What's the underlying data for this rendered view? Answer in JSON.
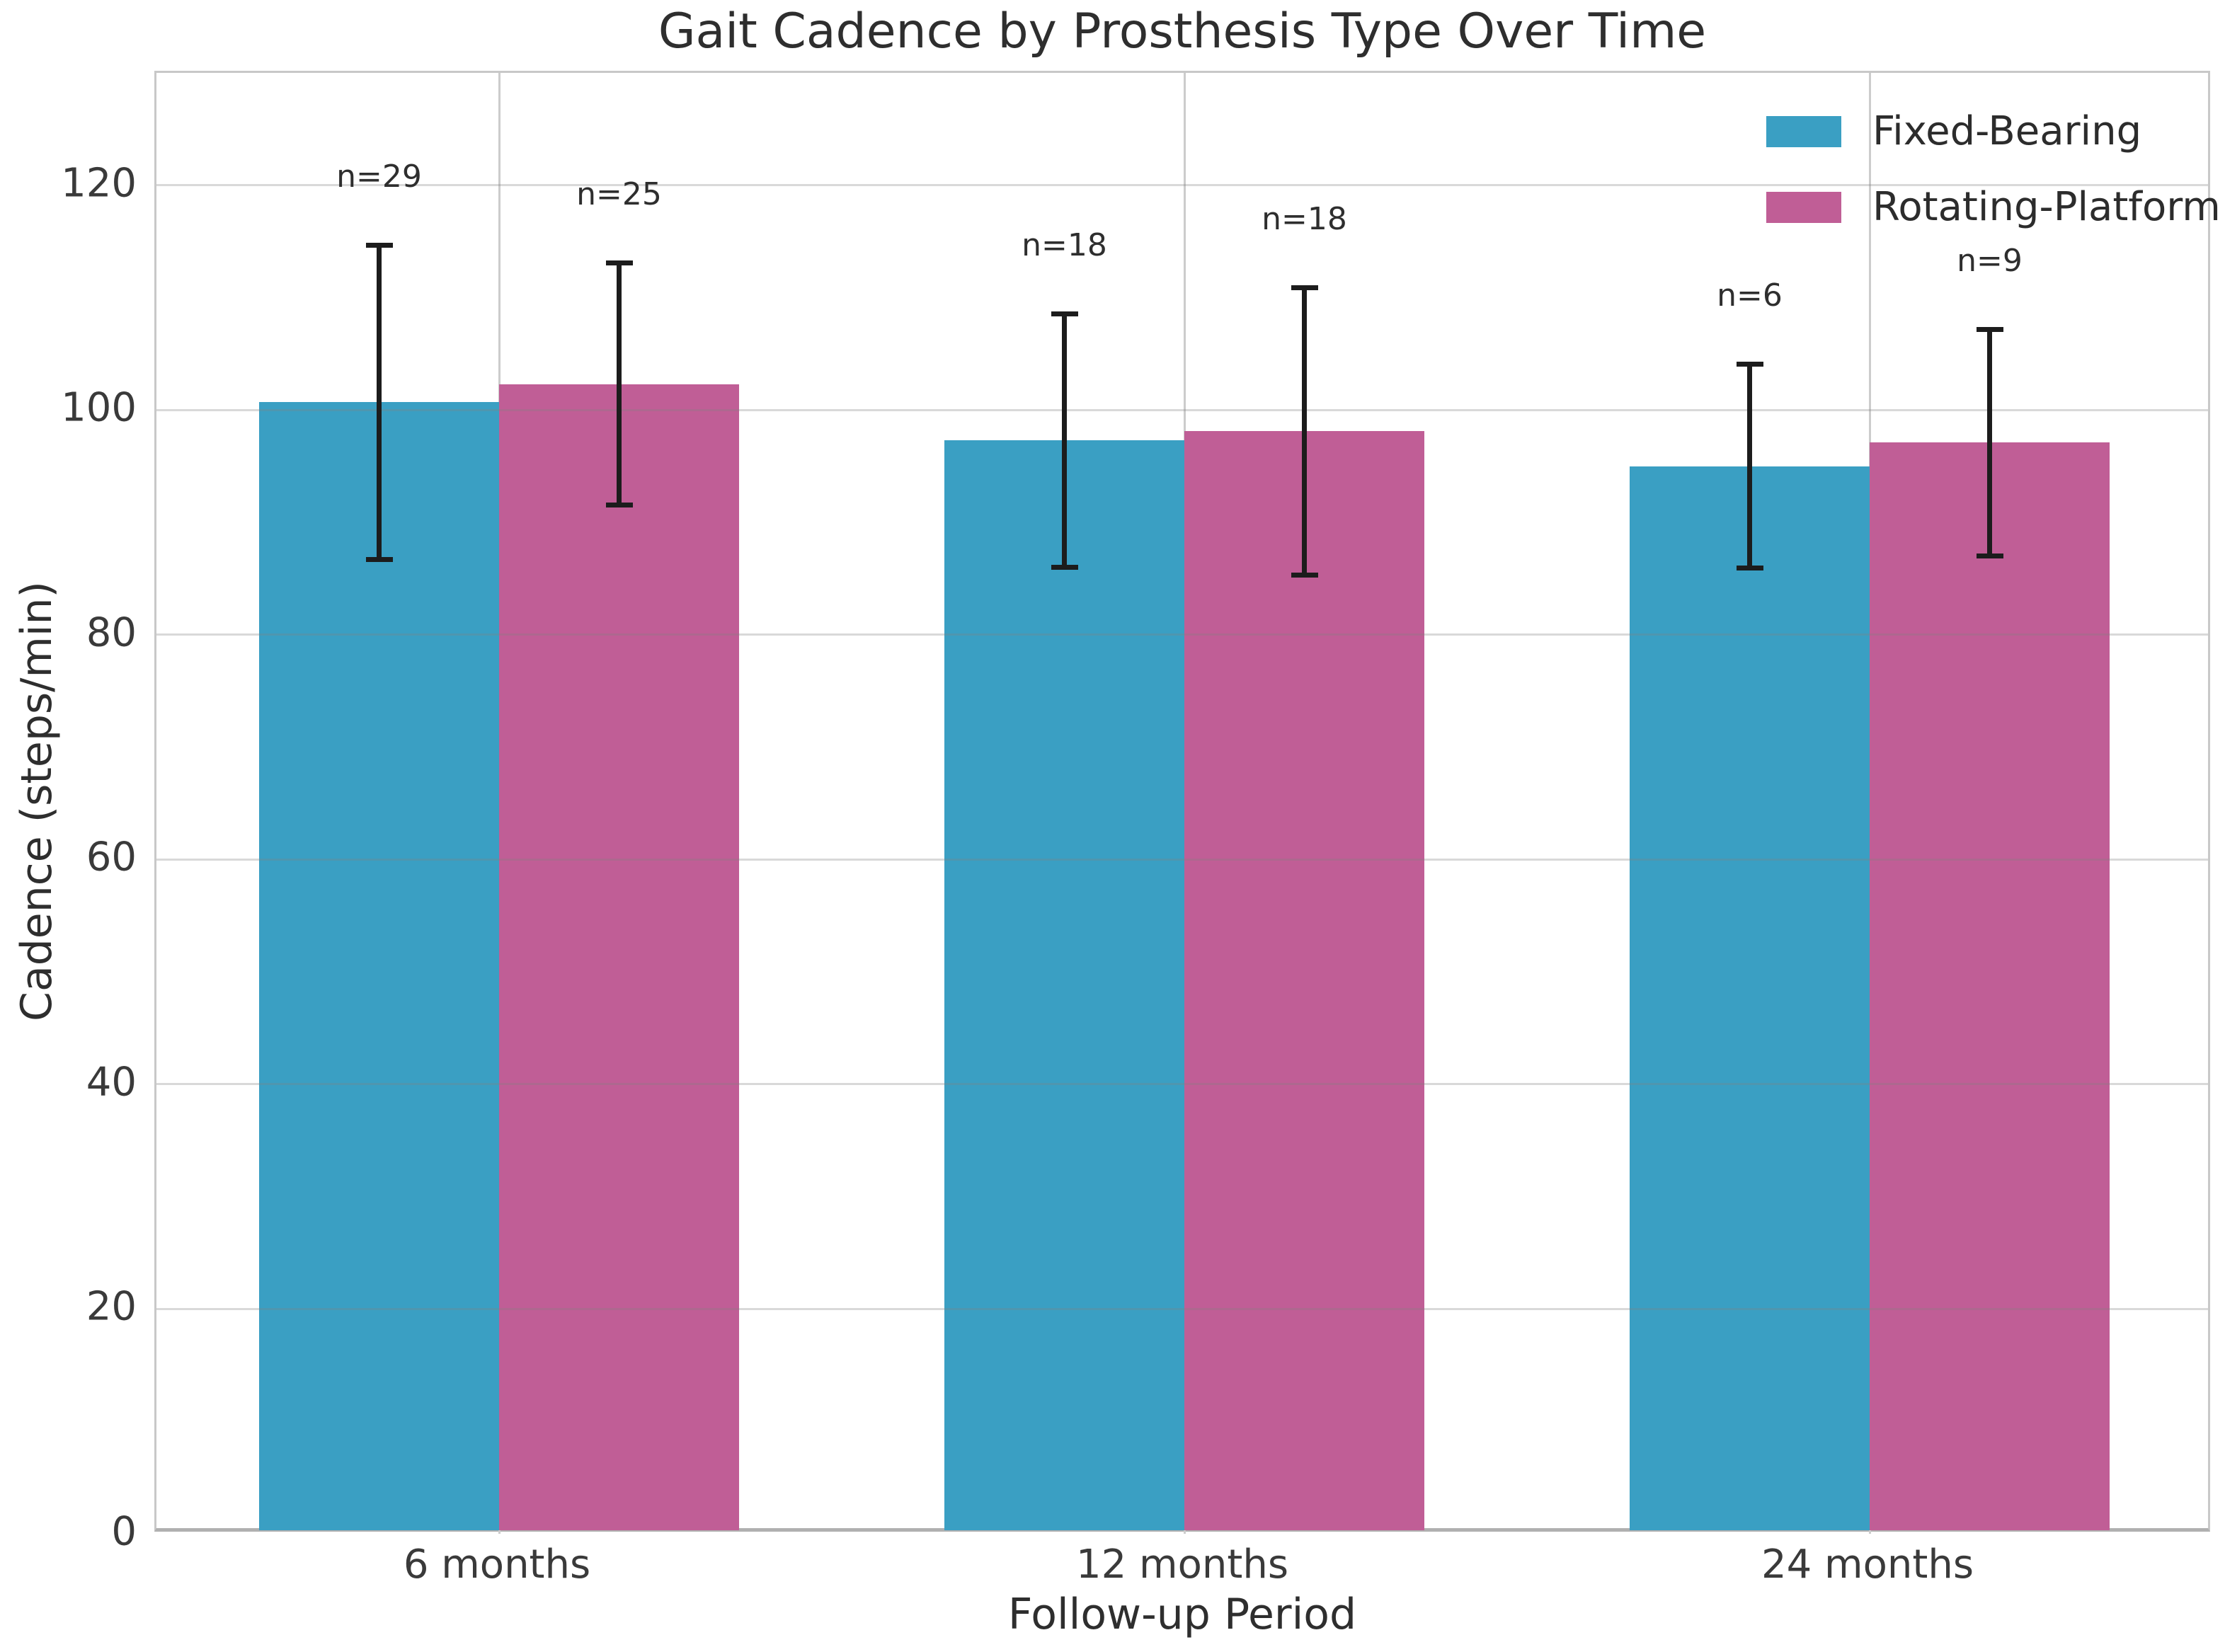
{
  "chart_data": {
    "type": "bar",
    "title": "Gait Cadence by Prosthesis Type Over Time",
    "xlabel": "Follow-up Period",
    "ylabel": "Cadence (steps/min)",
    "categories": [
      "6 months",
      "12 months",
      "24 months"
    ],
    "series": [
      {
        "name": "Fixed-Bearing",
        "color": "#3A9FC3",
        "values": [
          100.7,
          97.3,
          95.0
        ],
        "errors": [
          14.2,
          11.5,
          9.3
        ],
        "n_labels": [
          "n=29",
          "n=18",
          "n=6"
        ]
      },
      {
        "name": "Rotating-Platform",
        "color": "#C05E96",
        "values": [
          102.3,
          98.1,
          97.1
        ],
        "errors": [
          11.0,
          13.0,
          10.3
        ],
        "n_labels": [
          "n=25",
          "n=18",
          "n=9"
        ]
      }
    ],
    "ylim": [
      0,
      130
    ],
    "yticks": [
      0,
      20,
      40,
      60,
      80,
      100,
      120
    ],
    "grid": true,
    "legend_position": "upper right",
    "error_bar_color": "#1c1c1c"
  }
}
